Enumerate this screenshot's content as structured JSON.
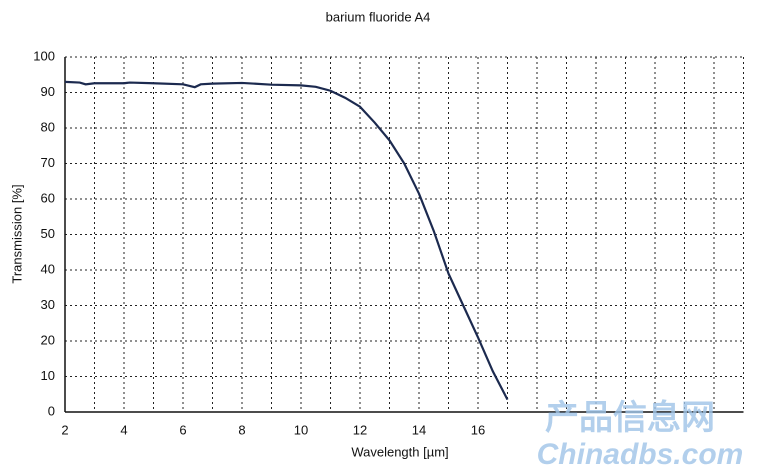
{
  "chart_data": {
    "type": "line",
    "title": "barium fluoride A4",
    "x_label": "Wavelength [µm]",
    "y_label": "Transmission [%]",
    "xlim": [
      2,
      25
    ],
    "ylim": [
      0,
      100
    ],
    "xticks": [
      2,
      4,
      6,
      8,
      10,
      12,
      14,
      16
    ],
    "xgrid": [
      3,
      4,
      5,
      6,
      7,
      8,
      9,
      10,
      11,
      12,
      13,
      14,
      15,
      16,
      17,
      18,
      19,
      20,
      21,
      22,
      23,
      24,
      25
    ],
    "yticks": [
      0,
      10,
      20,
      30,
      40,
      50,
      60,
      70,
      80,
      90,
      100
    ],
    "grid": true,
    "series": [
      {
        "name": "barium fluoride A4",
        "color": "#1c2a4f",
        "x": [
          2,
          2.5,
          2.7,
          3,
          4,
          4.2,
          5,
          6,
          6.4,
          6.6,
          7,
          8,
          9,
          10,
          10.5,
          11,
          11.5,
          12,
          12.5,
          13,
          13.5,
          14,
          14.5,
          15,
          15.5,
          16,
          16.5,
          17
        ],
        "values": [
          93,
          92.8,
          92.3,
          92.6,
          92.6,
          92.8,
          92.6,
          92.3,
          91.5,
          92.3,
          92.5,
          92.7,
          92.2,
          92,
          91.6,
          90.5,
          88.5,
          86,
          81.5,
          76.5,
          70,
          61.5,
          51,
          39,
          30,
          21,
          11.5,
          3.5
        ]
      }
    ],
    "watermark": [
      "产品信息网",
      "Chinadbs.com"
    ]
  }
}
